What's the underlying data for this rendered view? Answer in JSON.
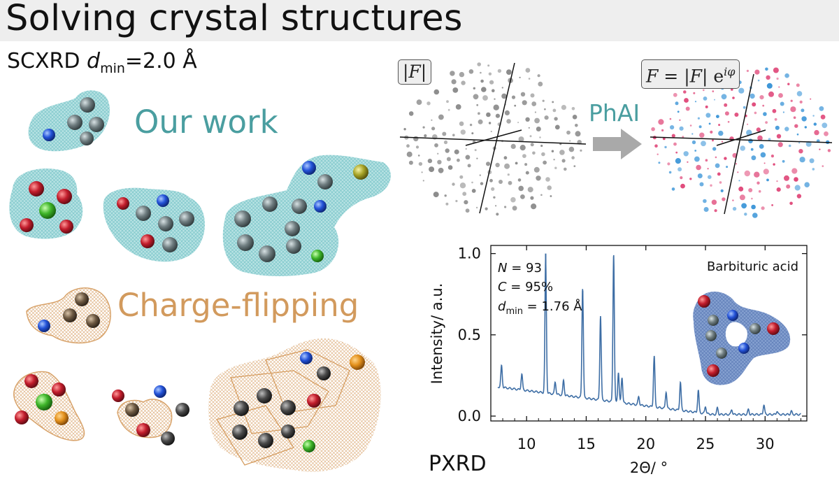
{
  "banner": {
    "title": "Solving crystal structures"
  },
  "subtitle": {
    "prefix": "SCXRD ",
    "var": "d",
    "sub": "min",
    "suffix": "=2.0 Å"
  },
  "labels": {
    "our_work": "Our work",
    "charge_flipping": "Charge-flipping",
    "phai": "PhAI",
    "pxrd": "PXRD"
  },
  "formula": {
    "left": "|F|",
    "right_lhs": "F",
    "right_mid": " = |",
    "right_F": "F",
    "right_end": "| e",
    "right_exp": "iφ"
  },
  "colors": {
    "teal": "#4a9ea0",
    "orange": "#d29a5d",
    "plot_line": "#3e6ea5",
    "pink": "#e0497a",
    "blue": "#3d96d8",
    "gray": "#8a8a8a"
  },
  "chart_data": {
    "type": "line",
    "title": "",
    "xlabel": "2Θ/ °",
    "ylabel": "Intensity/ a.u.",
    "xlim": [
      7,
      33.5
    ],
    "ylim": [
      -0.03,
      1.05
    ],
    "xticks": [
      10,
      15,
      20,
      25,
      30
    ],
    "yticks": [
      0.0,
      0.5,
      1.0
    ],
    "ytick_labels": [
      "0.0",
      "0.5",
      "1.0"
    ],
    "annotations": {
      "N_var": "N",
      "N_text": " = 93",
      "C_var": "C",
      "C_text": " = 95%",
      "d_var": "d",
      "d_sub": "min",
      "d_text": " = 1.76 Å",
      "compound": "Barbituric acid"
    },
    "baseline": 0.17,
    "peaks": [
      {
        "x": 7.9,
        "y": 0.31
      },
      {
        "x": 9.6,
        "y": 0.26
      },
      {
        "x": 11.6,
        "y": 0.97
      },
      {
        "x": 12.4,
        "y": 0.21
      },
      {
        "x": 13.1,
        "y": 0.22
      },
      {
        "x": 14.7,
        "y": 0.79
      },
      {
        "x": 16.2,
        "y": 0.62
      },
      {
        "x": 17.3,
        "y": 1.0
      },
      {
        "x": 17.7,
        "y": 0.27
      },
      {
        "x": 18.0,
        "y": 0.24
      },
      {
        "x": 19.4,
        "y": 0.12
      },
      {
        "x": 20.7,
        "y": 0.37
      },
      {
        "x": 21.7,
        "y": 0.15
      },
      {
        "x": 22.9,
        "y": 0.21
      },
      {
        "x": 24.4,
        "y": 0.16
      },
      {
        "x": 25.0,
        "y": 0.06
      },
      {
        "x": 26.0,
        "y": 0.05
      },
      {
        "x": 27.2,
        "y": 0.04
      },
      {
        "x": 28.6,
        "y": 0.04
      },
      {
        "x": 29.9,
        "y": 0.07
      },
      {
        "x": 31.0,
        "y": 0.03
      },
      {
        "x": 32.2,
        "y": 0.03
      }
    ],
    "ticks_markers": [
      {
        "x": 11.6,
        "y": 1.0
      },
      {
        "x": 14.7,
        "y": 0.77
      },
      {
        "x": 11.6,
        "y": 0.75
      }
    ]
  }
}
